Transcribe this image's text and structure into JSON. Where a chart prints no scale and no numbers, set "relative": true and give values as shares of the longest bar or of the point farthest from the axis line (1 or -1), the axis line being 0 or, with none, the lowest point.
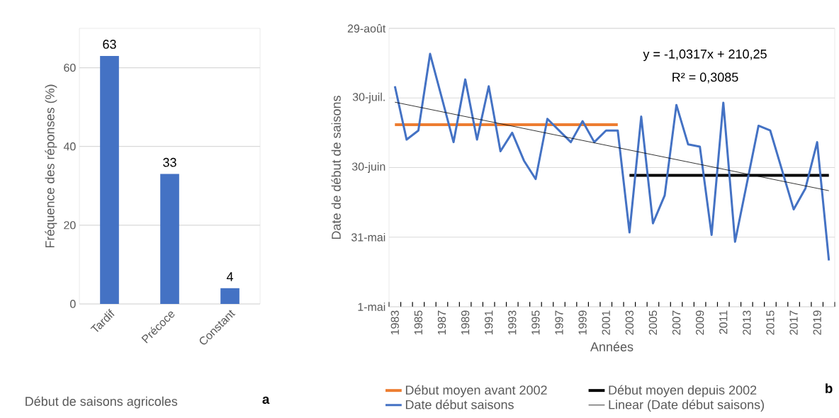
{
  "chart_data": [
    {
      "type": "bar",
      "categories": [
        "Tardif",
        "Précoce",
        "Constant"
      ],
      "values": [
        63,
        33,
        4
      ],
      "color": "#4472c4",
      "ylabel": "Fréquence des réponses (%)",
      "xlabel": "Début de saisons agricoles",
      "ylim": [
        0,
        70
      ],
      "yticks": [
        0,
        20,
        40,
        60
      ],
      "grid": "y",
      "data_labels": true,
      "annotations": [
        "a"
      ]
    },
    {
      "type": "line",
      "relative": true,
      "xlabel": "Années",
      "ylabel": "Date de début de saisons",
      "x": [
        1983,
        1984,
        1985,
        1986,
        1987,
        1988,
        1989,
        1990,
        1991,
        1992,
        1993,
        1994,
        1995,
        1996,
        1997,
        1998,
        1999,
        2000,
        2001,
        2002,
        2003,
        2004,
        2005,
        2006,
        2007,
        2008,
        2009,
        2010,
        2011,
        2012,
        2013,
        2014,
        2015,
        2016,
        2017,
        2018,
        2019,
        2020
      ],
      "xlim": [
        1982.5,
        2020.5
      ],
      "xticks": [
        1983,
        1985,
        1987,
        1989,
        1991,
        1993,
        1995,
        1997,
        1999,
        2001,
        2003,
        2005,
        2007,
        2009,
        2011,
        2013,
        2015,
        2017,
        2019
      ],
      "grid": "y",
      "legend": "bottom",
      "marker": "none",
      "annotations": [
        "y = -1,0317x + 210,25",
        "R² = 0,3085",
        "b",
        "1-mai",
        "31-mai",
        "30-juin",
        "30-juil.",
        "29-août"
      ],
      "series": [
        {
          "name": "Début moyen avant 2002",
          "color": "#ed7d31",
          "x": [
            1983,
            2002
          ],
          "values": [
            0.72,
            0.72
          ]
        },
        {
          "name": "Début moyen depuis 2002",
          "color": "#000000",
          "x": [
            2003,
            2020
          ],
          "values": [
            0.52,
            0.52
          ]
        },
        {
          "name": "Date début saisons",
          "color": "#4472c4",
          "values": [
            0.872,
            0.661,
            0.697,
            1,
            0.826,
            0.651,
            0.899,
            0.661,
            0.872,
            0.615,
            0.688,
            0.578,
            0.505,
            0.743,
            0.697,
            0.651,
            0.734,
            0.651,
            0.697,
            0.697,
            0.294,
            0.752,
            0.33,
            0.44,
            0.798,
            0.642,
            0.633,
            0.284,
            0.807,
            0.257,
            0.486,
            0.716,
            0.697,
            0.541,
            0.385,
            0.468,
            0.651,
            0.183
          ]
        },
        {
          "name": "Linear (Date début saisons)",
          "color": "#000000",
          "x": [
            1983,
            2020
          ],
          "values": [
            0.809,
            0.459
          ]
        }
      ]
    }
  ]
}
